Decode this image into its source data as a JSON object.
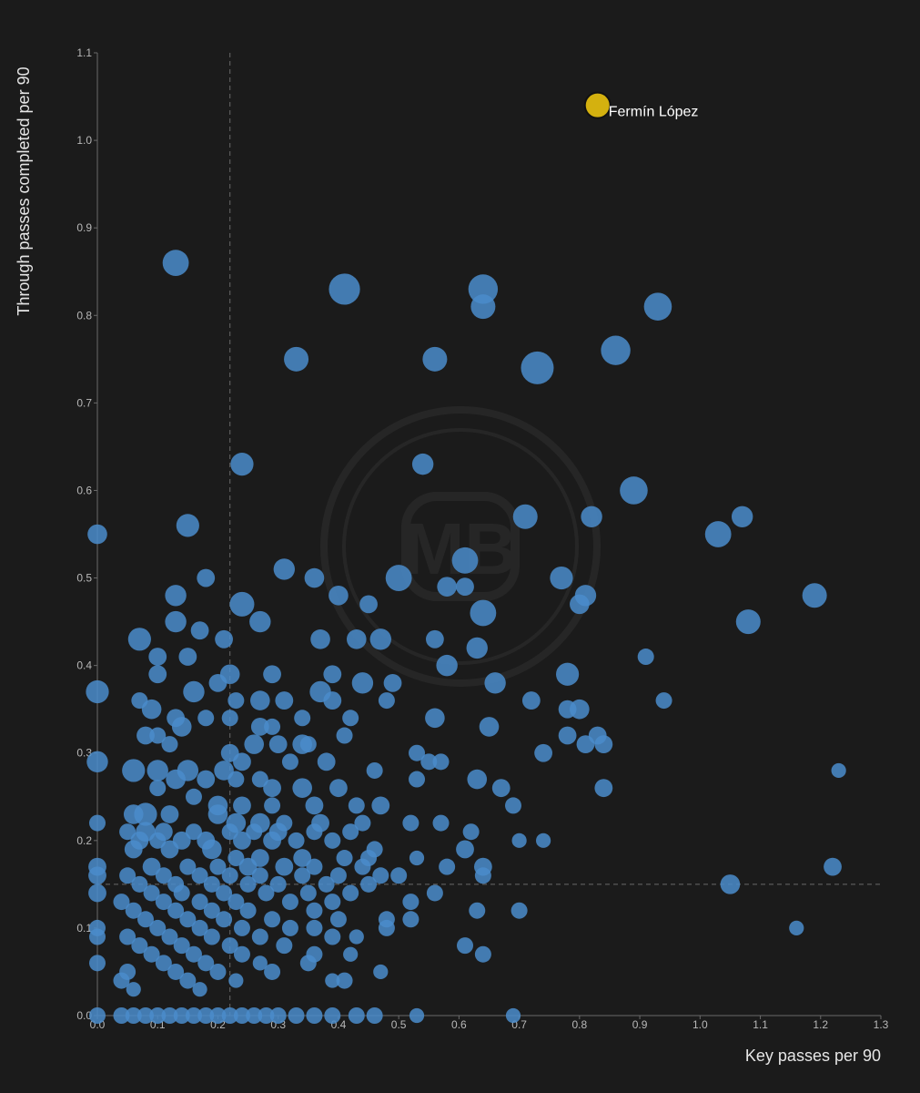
{
  "chart_data": {
    "type": "scatter",
    "xlabel": "Key passes per 90",
    "ylabel": "Through passes completed per 90",
    "xlim": [
      0,
      1.3
    ],
    "ylim": [
      0,
      1.1
    ],
    "x_ticks": [
      "0.0",
      "0.1",
      "0.2",
      "0.3",
      "0.4",
      "0.5",
      "0.6",
      "0.7",
      "0.8",
      "0.9",
      "1.0",
      "1.1",
      "1.2",
      "1.3"
    ],
    "y_ticks": [
      "0.0",
      "0.1",
      "0.2",
      "0.3",
      "0.4",
      "0.5",
      "0.6",
      "0.7",
      "0.8",
      "0.9",
      "1.0",
      "1.1"
    ],
    "reference_lines": {
      "x": 0.22,
      "y": 0.15
    },
    "grid": false,
    "colors": {
      "points": "#4a8ccb",
      "highlight": "#d4b10f",
      "background": "#1b1b1b"
    },
    "highlight": {
      "label": "Fermín López",
      "x": 0.83,
      "y": 1.04
    },
    "points": [
      [
        0.13,
        0.86,
        1.6
      ],
      [
        0.41,
        0.83,
        1.9
      ],
      [
        0.64,
        0.83,
        1.8
      ],
      [
        0.64,
        0.81,
        1.5
      ],
      [
        0.93,
        0.81,
        1.7
      ],
      [
        0.33,
        0.75,
        1.5
      ],
      [
        0.56,
        0.75,
        1.5
      ],
      [
        0.86,
        0.76,
        1.8
      ],
      [
        0.73,
        0.74,
        2.0
      ],
      [
        0.24,
        0.63,
        1.4
      ],
      [
        0.54,
        0.63,
        1.3
      ],
      [
        0.89,
        0.6,
        1.7
      ],
      [
        0.15,
        0.56,
        1.4
      ],
      [
        0.71,
        0.57,
        1.5
      ],
      [
        0.82,
        0.57,
        1.3
      ],
      [
        1.03,
        0.55,
        1.6
      ],
      [
        1.07,
        0.57,
        1.3
      ],
      [
        0.0,
        0.55,
        1.2
      ],
      [
        0.61,
        0.52,
        1.6
      ],
      [
        0.31,
        0.51,
        1.3
      ],
      [
        0.5,
        0.5,
        1.6
      ],
      [
        0.77,
        0.5,
        1.4
      ],
      [
        0.18,
        0.5,
        1.1
      ],
      [
        0.36,
        0.5,
        1.2
      ],
      [
        1.19,
        0.48,
        1.5
      ],
      [
        0.13,
        0.48,
        1.3
      ],
      [
        0.4,
        0.48,
        1.2
      ],
      [
        0.24,
        0.47,
        1.5
      ],
      [
        0.58,
        0.49,
        1.2
      ],
      [
        0.61,
        0.49,
        1.1
      ],
      [
        0.81,
        0.48,
        1.3
      ],
      [
        0.8,
        0.47,
        1.2
      ],
      [
        1.08,
        0.45,
        1.5
      ],
      [
        0.13,
        0.45,
        1.3
      ],
      [
        0.27,
        0.45,
        1.3
      ],
      [
        0.64,
        0.46,
        1.6
      ],
      [
        0.45,
        0.47,
        1.1
      ],
      [
        0.07,
        0.43,
        1.4
      ],
      [
        0.17,
        0.44,
        1.1
      ],
      [
        0.21,
        0.43,
        1.1
      ],
      [
        0.37,
        0.43,
        1.2
      ],
      [
        0.43,
        0.43,
        1.2
      ],
      [
        0.47,
        0.43,
        1.3
      ],
      [
        0.56,
        0.43,
        1.1
      ],
      [
        0.63,
        0.42,
        1.3
      ],
      [
        0.91,
        0.41,
        1.0
      ],
      [
        0.1,
        0.41,
        1.1
      ],
      [
        0.15,
        0.41,
        1.1
      ],
      [
        0.0,
        0.37,
        1.4
      ],
      [
        0.1,
        0.39,
        1.1
      ],
      [
        0.22,
        0.39,
        1.2
      ],
      [
        0.29,
        0.39,
        1.1
      ],
      [
        0.39,
        0.39,
        1.1
      ],
      [
        0.44,
        0.38,
        1.3
      ],
      [
        0.49,
        0.38,
        1.1
      ],
      [
        0.58,
        0.4,
        1.3
      ],
      [
        0.66,
        0.38,
        1.3
      ],
      [
        0.78,
        0.39,
        1.4
      ],
      [
        0.2,
        0.38,
        1.1
      ],
      [
        0.16,
        0.37,
        1.3
      ],
      [
        0.37,
        0.37,
        1.3
      ],
      [
        0.23,
        0.36,
        1.0
      ],
      [
        0.27,
        0.36,
        1.2
      ],
      [
        0.31,
        0.36,
        1.1
      ],
      [
        0.39,
        0.36,
        1.1
      ],
      [
        0.48,
        0.36,
        1.0
      ],
      [
        0.07,
        0.36,
        1.0
      ],
      [
        0.72,
        0.36,
        1.1
      ],
      [
        0.94,
        0.36,
        1.0
      ],
      [
        0.09,
        0.35,
        1.2
      ],
      [
        0.18,
        0.34,
        1.0
      ],
      [
        0.22,
        0.34,
        1.0
      ],
      [
        0.34,
        0.34,
        1.0
      ],
      [
        0.42,
        0.34,
        1.0
      ],
      [
        0.56,
        0.34,
        1.2
      ],
      [
        0.78,
        0.35,
        1.1
      ],
      [
        0.8,
        0.35,
        1.2
      ],
      [
        0.65,
        0.33,
        1.2
      ],
      [
        0.13,
        0.34,
        1.1
      ],
      [
        0.14,
        0.33,
        1.2
      ],
      [
        0.29,
        0.33,
        1.0
      ],
      [
        0.27,
        0.33,
        1.1
      ],
      [
        0.08,
        0.32,
        1.1
      ],
      [
        0.1,
        0.32,
        1.0
      ],
      [
        0.12,
        0.31,
        1.0
      ],
      [
        0.22,
        0.3,
        1.1
      ],
      [
        0.26,
        0.31,
        1.2
      ],
      [
        0.3,
        0.31,
        1.1
      ],
      [
        0.34,
        0.31,
        1.2
      ],
      [
        0.35,
        0.31,
        1.0
      ],
      [
        0.41,
        0.32,
        1.0
      ],
      [
        0.78,
        0.32,
        1.1
      ],
      [
        0.83,
        0.32,
        1.1
      ],
      [
        0.84,
        0.31,
        1.1
      ],
      [
        0.81,
        0.31,
        1.1
      ],
      [
        0.0,
        0.29,
        1.3
      ],
      [
        0.06,
        0.28,
        1.4
      ],
      [
        0.1,
        0.28,
        1.3
      ],
      [
        0.15,
        0.28,
        1.3
      ],
      [
        0.21,
        0.28,
        1.2
      ],
      [
        0.24,
        0.29,
        1.1
      ],
      [
        0.32,
        0.29,
        1.0
      ],
      [
        0.38,
        0.29,
        1.1
      ],
      [
        0.53,
        0.3,
        1.0
      ],
      [
        0.55,
        0.29,
        1.0
      ],
      [
        0.57,
        0.29,
        1.0
      ],
      [
        0.74,
        0.3,
        1.1
      ],
      [
        0.46,
        0.28,
        1.0
      ],
      [
        1.23,
        0.28,
        0.9
      ],
      [
        0.13,
        0.27,
        1.2
      ],
      [
        0.18,
        0.27,
        1.1
      ],
      [
        0.23,
        0.27,
        1.0
      ],
      [
        0.27,
        0.27,
        1.0
      ],
      [
        0.29,
        0.26,
        1.1
      ],
      [
        0.34,
        0.26,
        1.2
      ],
      [
        0.4,
        0.26,
        1.1
      ],
      [
        0.53,
        0.27,
        1.0
      ],
      [
        0.63,
        0.27,
        1.2
      ],
      [
        0.67,
        0.26,
        1.1
      ],
      [
        0.84,
        0.26,
        1.1
      ],
      [
        0.1,
        0.26,
        1.0
      ],
      [
        0.16,
        0.25,
        1.0
      ],
      [
        0.2,
        0.24,
        1.2
      ],
      [
        0.24,
        0.24,
        1.1
      ],
      [
        0.29,
        0.24,
        1.0
      ],
      [
        0.36,
        0.24,
        1.1
      ],
      [
        0.43,
        0.24,
        1.0
      ],
      [
        0.47,
        0.24,
        1.1
      ],
      [
        0.69,
        0.24,
        1.0
      ],
      [
        0.06,
        0.23,
        1.2
      ],
      [
        0.08,
        0.23,
        1.4
      ],
      [
        0.12,
        0.23,
        1.1
      ],
      [
        0.2,
        0.23,
        1.2
      ],
      [
        0.23,
        0.22,
        1.2
      ],
      [
        0.27,
        0.22,
        1.2
      ],
      [
        0.31,
        0.22,
        1.0
      ],
      [
        0.37,
        0.22,
        1.1
      ],
      [
        0.44,
        0.22,
        1.0
      ],
      [
        0.52,
        0.22,
        1.0
      ],
      [
        0.57,
        0.22,
        1.0
      ],
      [
        0.0,
        0.22,
        1.0
      ],
      [
        0.05,
        0.21,
        1.0
      ],
      [
        0.08,
        0.21,
        1.2
      ],
      [
        0.11,
        0.21,
        1.1
      ],
      [
        0.16,
        0.21,
        1.0
      ],
      [
        0.22,
        0.21,
        1.0
      ],
      [
        0.26,
        0.21,
        1.0
      ],
      [
        0.3,
        0.21,
        1.1
      ],
      [
        0.36,
        0.21,
        1.0
      ],
      [
        0.42,
        0.21,
        1.0
      ],
      [
        0.62,
        0.21,
        1.0
      ],
      [
        0.7,
        0.2,
        0.9
      ],
      [
        0.74,
        0.2,
        0.9
      ],
      [
        0.07,
        0.2,
        1.1
      ],
      [
        0.1,
        0.2,
        1.0
      ],
      [
        0.14,
        0.2,
        1.1
      ],
      [
        0.18,
        0.2,
        1.1
      ],
      [
        0.24,
        0.2,
        1.1
      ],
      [
        0.29,
        0.2,
        1.1
      ],
      [
        0.33,
        0.2,
        1.0
      ],
      [
        0.39,
        0.2,
        1.0
      ],
      [
        0.46,
        0.19,
        1.0
      ],
      [
        0.06,
        0.19,
        1.1
      ],
      [
        0.12,
        0.19,
        1.1
      ],
      [
        0.19,
        0.19,
        1.2
      ],
      [
        0.23,
        0.18,
        1.0
      ],
      [
        0.27,
        0.18,
        1.1
      ],
      [
        0.34,
        0.18,
        1.1
      ],
      [
        0.41,
        0.18,
        1.0
      ],
      [
        0.45,
        0.18,
        1.0
      ],
      [
        0.53,
        0.18,
        0.9
      ],
      [
        0.61,
        0.19,
        1.1
      ],
      [
        0.0,
        0.17,
        1.1
      ],
      [
        0.09,
        0.17,
        1.1
      ],
      [
        0.15,
        0.17,
        1.0
      ],
      [
        0.2,
        0.17,
        1.0
      ],
      [
        0.25,
        0.17,
        1.1
      ],
      [
        0.31,
        0.17,
        1.1
      ],
      [
        0.36,
        0.17,
        1.0
      ],
      [
        0.44,
        0.17,
        1.0
      ],
      [
        0.58,
        0.17,
        1.0
      ],
      [
        0.64,
        0.17,
        1.1
      ],
      [
        1.22,
        0.17,
        1.1
      ],
      [
        0.0,
        0.16,
        1.1
      ],
      [
        0.05,
        0.16,
        1.0
      ],
      [
        0.11,
        0.16,
        1.0
      ],
      [
        0.17,
        0.16,
        1.0
      ],
      [
        0.22,
        0.16,
        1.0
      ],
      [
        0.27,
        0.16,
        1.0
      ],
      [
        0.34,
        0.16,
        1.0
      ],
      [
        0.4,
        0.16,
        1.0
      ],
      [
        0.47,
        0.16,
        1.0
      ],
      [
        0.5,
        0.16,
        1.0
      ],
      [
        0.64,
        0.16,
        1.0
      ],
      [
        1.05,
        0.15,
        1.2
      ],
      [
        0.07,
        0.15,
        1.0
      ],
      [
        0.13,
        0.15,
        1.0
      ],
      [
        0.19,
        0.15,
        1.0
      ],
      [
        0.25,
        0.15,
        1.0
      ],
      [
        0.3,
        0.15,
        1.0
      ],
      [
        0.38,
        0.15,
        1.0
      ],
      [
        0.45,
        0.15,
        1.0
      ],
      [
        0.0,
        0.14,
        1.1
      ],
      [
        0.09,
        0.14,
        1.0
      ],
      [
        0.14,
        0.14,
        1.0
      ],
      [
        0.21,
        0.14,
        1.0
      ],
      [
        0.28,
        0.14,
        1.0
      ],
      [
        0.35,
        0.14,
        1.0
      ],
      [
        0.42,
        0.14,
        1.0
      ],
      [
        0.56,
        0.14,
        1.0
      ],
      [
        0.04,
        0.13,
        1.0
      ],
      [
        0.11,
        0.13,
        1.0
      ],
      [
        0.17,
        0.13,
        1.0
      ],
      [
        0.23,
        0.13,
        1.0
      ],
      [
        0.32,
        0.13,
        1.0
      ],
      [
        0.39,
        0.13,
        1.0
      ],
      [
        0.52,
        0.13,
        1.0
      ],
      [
        0.06,
        0.12,
        1.0
      ],
      [
        0.13,
        0.12,
        1.0
      ],
      [
        0.19,
        0.12,
        1.0
      ],
      [
        0.25,
        0.12,
        1.0
      ],
      [
        0.36,
        0.12,
        1.0
      ],
      [
        0.63,
        0.12,
        1.0
      ],
      [
        0.7,
        0.12,
        1.0
      ],
      [
        0.08,
        0.11,
        1.0
      ],
      [
        0.15,
        0.11,
        1.0
      ],
      [
        0.21,
        0.11,
        1.0
      ],
      [
        0.29,
        0.11,
        1.0
      ],
      [
        0.4,
        0.11,
        1.0
      ],
      [
        0.48,
        0.11,
        1.0
      ],
      [
        0.52,
        0.11,
        1.0
      ],
      [
        0.0,
        0.1,
        1.0
      ],
      [
        0.1,
        0.1,
        1.0
      ],
      [
        0.17,
        0.1,
        1.0
      ],
      [
        0.24,
        0.1,
        1.0
      ],
      [
        0.32,
        0.1,
        1.0
      ],
      [
        0.36,
        0.1,
        1.0
      ],
      [
        0.48,
        0.1,
        1.0
      ],
      [
        1.16,
        0.1,
        0.9
      ],
      [
        0.05,
        0.09,
        1.0
      ],
      [
        0.12,
        0.09,
        1.0
      ],
      [
        0.19,
        0.09,
        1.0
      ],
      [
        0.27,
        0.09,
        1.0
      ],
      [
        0.39,
        0.09,
        1.0
      ],
      [
        0.43,
        0.09,
        0.9
      ],
      [
        0.0,
        0.09,
        1.0
      ],
      [
        0.07,
        0.08,
        1.0
      ],
      [
        0.14,
        0.08,
        1.0
      ],
      [
        0.22,
        0.08,
        1.0
      ],
      [
        0.31,
        0.08,
        1.0
      ],
      [
        0.61,
        0.08,
        1.0
      ],
      [
        0.09,
        0.07,
        1.0
      ],
      [
        0.16,
        0.07,
        1.0
      ],
      [
        0.24,
        0.07,
        1.0
      ],
      [
        0.36,
        0.07,
        1.0
      ],
      [
        0.42,
        0.07,
        0.9
      ],
      [
        0.64,
        0.07,
        1.0
      ],
      [
        0.11,
        0.06,
        1.0
      ],
      [
        0.18,
        0.06,
        1.0
      ],
      [
        0.27,
        0.06,
        0.9
      ],
      [
        0.35,
        0.06,
        1.0
      ],
      [
        0.0,
        0.06,
        1.0
      ],
      [
        0.05,
        0.05,
        1.0
      ],
      [
        0.13,
        0.05,
        1.0
      ],
      [
        0.2,
        0.05,
        1.0
      ],
      [
        0.29,
        0.05,
        1.0
      ],
      [
        0.47,
        0.05,
        0.9
      ],
      [
        0.04,
        0.04,
        1.0
      ],
      [
        0.15,
        0.04,
        1.0
      ],
      [
        0.23,
        0.04,
        0.9
      ],
      [
        0.39,
        0.04,
        0.9
      ],
      [
        0.41,
        0.04,
        1.0
      ],
      [
        0.06,
        0.03,
        0.9
      ],
      [
        0.17,
        0.03,
        0.9
      ],
      [
        0.0,
        0.0,
        1.0
      ],
      [
        0.04,
        0.0,
        1.0
      ],
      [
        0.06,
        0.0,
        1.0
      ],
      [
        0.08,
        0.0,
        1.0
      ],
      [
        0.1,
        0.0,
        1.0
      ],
      [
        0.12,
        0.0,
        1.0
      ],
      [
        0.14,
        0.0,
        1.0
      ],
      [
        0.16,
        0.0,
        1.0
      ],
      [
        0.18,
        0.0,
        1.0
      ],
      [
        0.2,
        0.0,
        1.0
      ],
      [
        0.22,
        0.0,
        1.0
      ],
      [
        0.24,
        0.0,
        1.0
      ],
      [
        0.26,
        0.0,
        1.0
      ],
      [
        0.28,
        0.0,
        1.0
      ],
      [
        0.3,
        0.0,
        1.0
      ],
      [
        0.33,
        0.0,
        1.0
      ],
      [
        0.36,
        0.0,
        1.0
      ],
      [
        0.39,
        0.0,
        1.0
      ],
      [
        0.43,
        0.0,
        1.0
      ],
      [
        0.46,
        0.0,
        1.0
      ],
      [
        0.53,
        0.0,
        0.9
      ],
      [
        0.69,
        0.0,
        0.9
      ]
    ]
  }
}
